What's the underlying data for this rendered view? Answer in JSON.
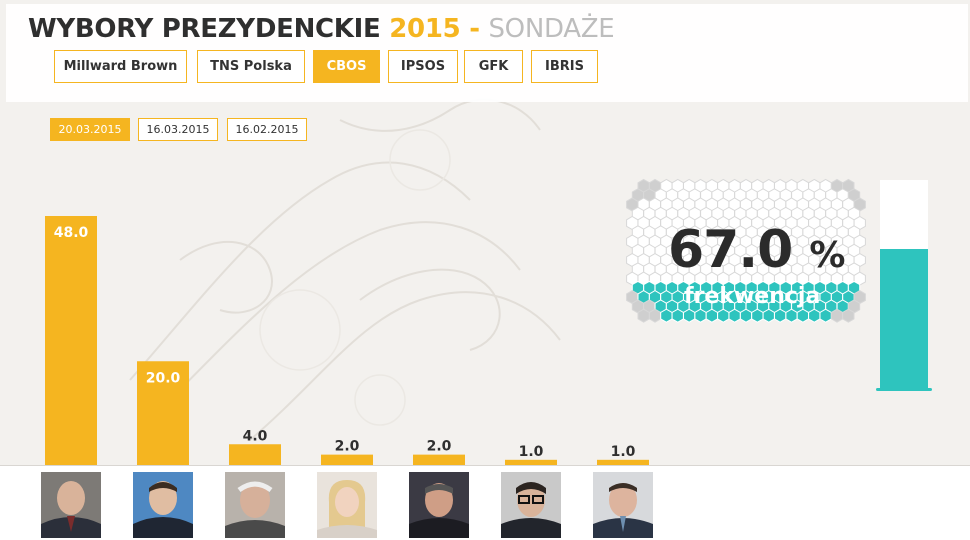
{
  "header": {
    "title_main": "WYBORY PREZYDENCKIE",
    "title_year": "2015",
    "title_dash": "-",
    "title_sub": "SONDAŻE"
  },
  "pollsters": [
    {
      "label": "Millward Brown",
      "active": false
    },
    {
      "label": "TNS Polska",
      "active": false
    },
    {
      "label": "CBOS",
      "active": true
    },
    {
      "label": "IPSOS",
      "active": false
    },
    {
      "label": "GFK",
      "active": false
    },
    {
      "label": "IBRIS",
      "active": false
    }
  ],
  "dates": [
    {
      "label": "20.03.2015",
      "active": true
    },
    {
      "label": "16.03.2015",
      "active": false
    },
    {
      "label": "16.02.2015",
      "active": false
    }
  ],
  "turnout": {
    "value": "67.0",
    "unit": "%",
    "label": "frekwencja",
    "fraction": 0.67
  },
  "colors": {
    "accent": "#f5b520",
    "teal": "#2ec4be",
    "dark_text": "#2f2f2f",
    "muted_text": "#bdbdbd"
  },
  "chart_data": {
    "type": "bar",
    "values": [
      48.0,
      20.0,
      4.0,
      2.0,
      2.0,
      1.0,
      1.0
    ],
    "value_labels": [
      "48.0",
      "20.0",
      "4.0",
      "2.0",
      "2.0",
      "1.0",
      "1.0"
    ],
    "ylim": [
      0,
      48
    ],
    "grid": false,
    "legend": "none",
    "color": "#f5b520"
  }
}
